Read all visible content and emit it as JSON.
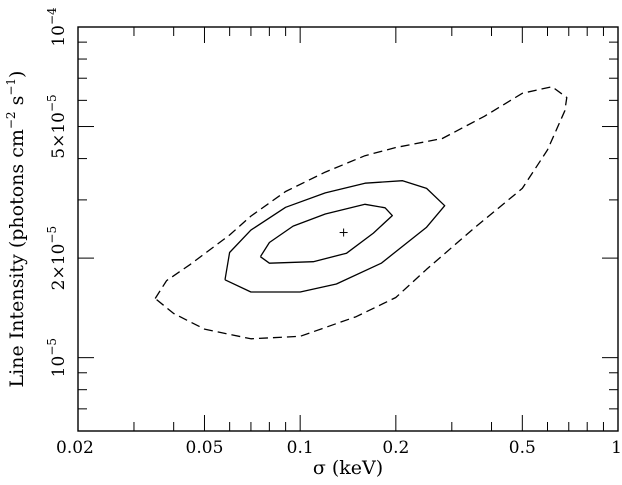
{
  "chart_data": {
    "type": "line",
    "subtype": "confidence contours",
    "title": "",
    "xlabel": "σ (keV)",
    "ylabel": {
      "base": "Line Intensity (photons cm",
      "exp1": "−2",
      "mid": " s",
      "exp2": "−1",
      "end": ")"
    },
    "xscale": "log",
    "yscale": "log",
    "xlim": [
      0.02,
      1
    ],
    "ylim": [
      6e-06,
      0.0001
    ],
    "grid": false,
    "legend": "none",
    "x_tick_labels": [
      {
        "value": 0.02,
        "label": "0.02"
      },
      {
        "value": 0.05,
        "label": "0.05"
      },
      {
        "value": 0.1,
        "label": "0.1"
      },
      {
        "value": 0.2,
        "label": "0.2"
      },
      {
        "value": 0.5,
        "label": "0.5"
      },
      {
        "value": 1,
        "label": "1"
      }
    ],
    "y_tick_labels": [
      {
        "value": 1e-05,
        "mant": "10",
        "exp": "−5"
      },
      {
        "value": 2e-05,
        "mant": "2×10",
        "exp": "−5"
      },
      {
        "value": 5e-05,
        "mant": "5×10",
        "exp": "−5"
      },
      {
        "value": 0.0001,
        "mant": "10",
        "exp": "−4"
      }
    ],
    "x_minor_ticks": [
      0.03,
      0.04,
      0.06,
      0.07,
      0.08,
      0.09,
      0.3,
      0.4,
      0.6,
      0.7,
      0.8,
      0.9
    ],
    "y_minor_ticks": [
      6e-06,
      7e-06,
      8e-06,
      9e-06,
      3e-05,
      4e-05,
      6e-05,
      7e-05,
      8e-05,
      9e-05
    ],
    "best_fit": {
      "x": 0.137,
      "y": 2.39e-05
    },
    "series": [
      {
        "style": "solid",
        "level": "inner",
        "points": [
          [
            0.075,
            2.02e-05
          ],
          [
            0.08,
            2.23e-05
          ],
          [
            0.095,
            2.5e-05
          ],
          [
            0.12,
            2.72e-05
          ],
          [
            0.16,
            2.91e-05
          ],
          [
            0.185,
            2.84e-05
          ],
          [
            0.195,
            2.69e-05
          ],
          [
            0.17,
            2.38e-05
          ],
          [
            0.14,
            2.07e-05
          ],
          [
            0.11,
            1.95e-05
          ],
          [
            0.08,
            1.93e-05
          ],
          [
            0.075,
            2.02e-05
          ]
        ]
      },
      {
        "style": "solid",
        "level": "middle",
        "points": [
          [
            0.058,
            1.72e-05
          ],
          [
            0.06,
            2.08e-05
          ],
          [
            0.07,
            2.43e-05
          ],
          [
            0.09,
            2.85e-05
          ],
          [
            0.12,
            3.15e-05
          ],
          [
            0.16,
            3.37e-05
          ],
          [
            0.21,
            3.43e-05
          ],
          [
            0.25,
            3.25e-05
          ],
          [
            0.285,
            2.88e-05
          ],
          [
            0.25,
            2.48e-05
          ],
          [
            0.18,
            1.93e-05
          ],
          [
            0.13,
            1.67e-05
          ],
          [
            0.1,
            1.58e-05
          ],
          [
            0.07,
            1.58e-05
          ],
          [
            0.058,
            1.72e-05
          ]
        ]
      },
      {
        "style": "dashed",
        "level": "outer",
        "points": [
          [
            0.035,
            1.51e-05
          ],
          [
            0.038,
            1.71e-05
          ],
          [
            0.045,
            1.91e-05
          ],
          [
            0.06,
            2.35e-05
          ],
          [
            0.07,
            2.68e-05
          ],
          [
            0.09,
            3.18e-05
          ],
          [
            0.12,
            3.64e-05
          ],
          [
            0.16,
            4.08e-05
          ],
          [
            0.2,
            4.32e-05
          ],
          [
            0.28,
            4.6e-05
          ],
          [
            0.38,
            5.37e-05
          ],
          [
            0.5,
            6.3e-05
          ],
          [
            0.62,
            6.6e-05
          ],
          [
            0.69,
            6.12e-05
          ],
          [
            0.68,
            5.58e-05
          ],
          [
            0.6,
            4.25e-05
          ],
          [
            0.5,
            3.25e-05
          ],
          [
            0.35,
            2.45e-05
          ],
          [
            0.25,
            1.85e-05
          ],
          [
            0.2,
            1.52e-05
          ],
          [
            0.15,
            1.33e-05
          ],
          [
            0.1,
            1.16e-05
          ],
          [
            0.07,
            1.14e-05
          ],
          [
            0.05,
            1.22e-05
          ],
          [
            0.04,
            1.36e-05
          ],
          [
            0.035,
            1.51e-05
          ]
        ]
      }
    ]
  }
}
